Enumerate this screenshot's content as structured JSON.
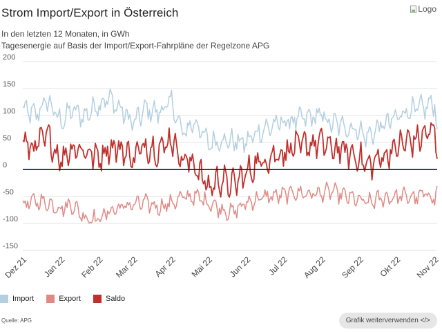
{
  "title": "Strom Import/Export in Österreich",
  "subtitle1": "In den letzten 12 Monaten, in GWh",
  "subtitle2": "Tagesenergie auf Basis der Import/Export-Fahrpläne der Regelzone APG",
  "logo_alt": "Logo",
  "source": "Quelle: APG",
  "share_button": "Grafik weiterverwenden </>",
  "colors": {
    "import": "#b3cfe0",
    "export": "#e08a85",
    "saldo": "#c0302c",
    "zero": "#1a1f4a",
    "grid": "#e3e3e3"
  },
  "legend": [
    {
      "label": "Import",
      "color": "#b3cfe0"
    },
    {
      "label": "Export",
      "color": "#e08a85"
    },
    {
      "label": "Saldo",
      "color": "#c0302c"
    }
  ],
  "chart_data": {
    "type": "line",
    "title": "Strom Import/Export in Österreich",
    "ylabel": "GWh",
    "xlabel": "",
    "ylim": [
      -150,
      200
    ],
    "yticks": [
      -150,
      -100,
      -50,
      0,
      50,
      100,
      150,
      200
    ],
    "ytick_labels": [
      "-150",
      "-100",
      "-50",
      "0",
      "50",
      "100",
      "150",
      "200"
    ],
    "xticks": [
      {
        "label": "Dez 21",
        "day": 0
      },
      {
        "label": "Jan 22",
        "day": 31
      },
      {
        "label": "Feb 22",
        "day": 62
      },
      {
        "label": "Mar 22",
        "day": 90
      },
      {
        "label": "Apr 22",
        "day": 121
      },
      {
        "label": "Mai 22",
        "day": 151
      },
      {
        "label": "Jun 22",
        "day": 182
      },
      {
        "label": "Jul 22",
        "day": 212
      },
      {
        "label": "Aug 22",
        "day": 243
      },
      {
        "label": "Sep 22",
        "day": 274
      },
      {
        "label": "Okt 22",
        "day": 304
      },
      {
        "label": "Nov 22",
        "day": 335
      }
    ],
    "x_range_days": [
      0,
      337
    ],
    "series": [
      {
        "name": "Import",
        "x": [
          0,
          10,
          20,
          31,
          40,
          50,
          62,
          70,
          80,
          90,
          100,
          110,
          121,
          130,
          140,
          151,
          160,
          170,
          182,
          190,
          200,
          212,
          220,
          230,
          243,
          250,
          260,
          274,
          280,
          290,
          304,
          310,
          320,
          330,
          335,
          337
        ],
        "values": [
          112,
          100,
          128,
          88,
          110,
          98,
          123,
          132,
          110,
          85,
          112,
          105,
          125,
          65,
          90,
          48,
          55,
          52,
          50,
          68,
          78,
          88,
          90,
          95,
          100,
          85,
          82,
          72,
          60,
          78,
          95,
          108,
          110,
          118,
          125,
          75
        ]
      },
      {
        "name": "Export",
        "x": [
          0,
          10,
          20,
          31,
          40,
          50,
          62,
          70,
          80,
          90,
          100,
          110,
          121,
          130,
          140,
          151,
          160,
          170,
          182,
          190,
          200,
          212,
          220,
          230,
          243,
          250,
          260,
          274,
          280,
          290,
          304,
          310,
          320,
          330,
          335,
          337
        ],
        "values": [
          -68,
          -58,
          -62,
          -72,
          -65,
          -88,
          -92,
          -78,
          -70,
          -65,
          -62,
          -70,
          -62,
          -52,
          -50,
          -60,
          -72,
          -80,
          -62,
          -55,
          -50,
          -48,
          -42,
          -45,
          -45,
          -40,
          -48,
          -58,
          -62,
          -55,
          -50,
          -50,
          -52,
          -45,
          -55,
          -35
        ]
      },
      {
        "name": "Saldo",
        "x": [
          0,
          10,
          20,
          31,
          40,
          50,
          62,
          70,
          80,
          90,
          100,
          110,
          121,
          130,
          140,
          151,
          160,
          170,
          182,
          190,
          200,
          212,
          220,
          230,
          243,
          250,
          260,
          274,
          280,
          290,
          304,
          310,
          320,
          330,
          335,
          337
        ],
        "values": [
          48,
          40,
          62,
          18,
          42,
          35,
          22,
          42,
          38,
          22,
          45,
          35,
          58,
          18,
          10,
          -35,
          -18,
          -30,
          -8,
          10,
          22,
          32,
          40,
          45,
          50,
          40,
          35,
          22,
          5,
          20,
          40,
          50,
          55,
          68,
          70,
          40
        ]
      }
    ],
    "zero_line": true,
    "grid": true
  }
}
